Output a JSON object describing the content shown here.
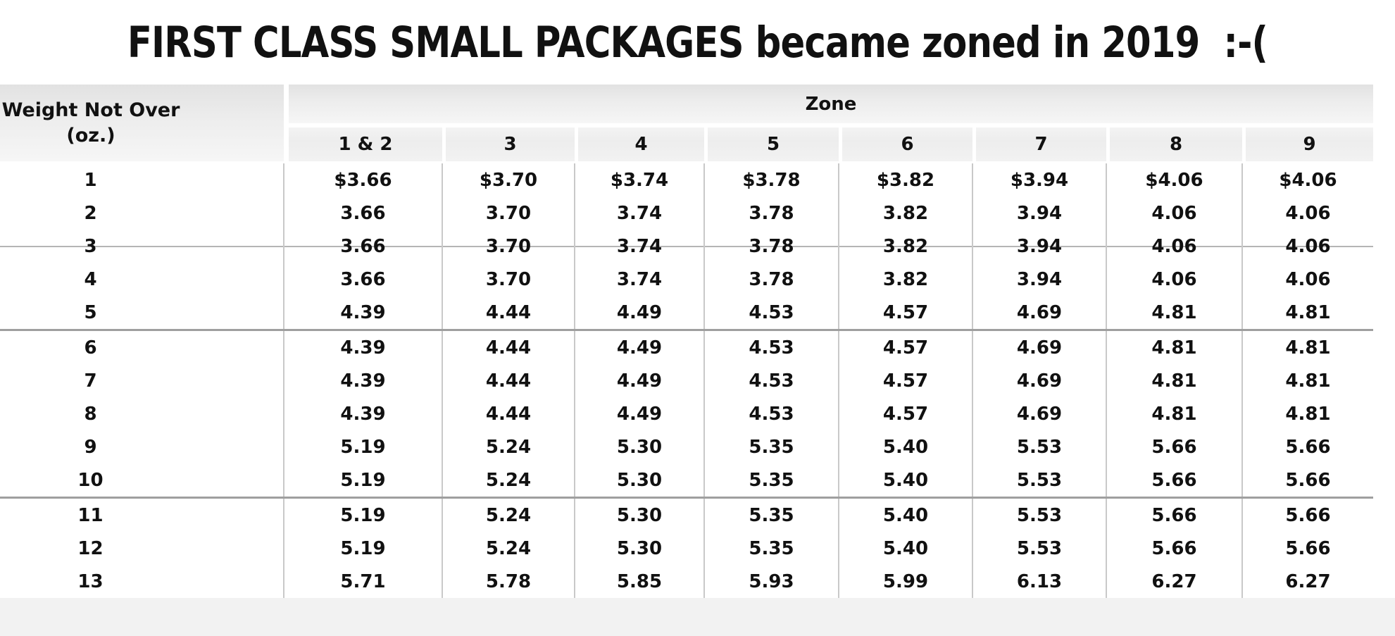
{
  "title": "FIRST CLASS SMALL PACKAGES became zoned in 2019  :-(",
  "table": {
    "weight_header_line1": "Weight Not Over",
    "weight_header_line2": "(oz.)",
    "zone_header": "Zone",
    "zone_columns": [
      "1 & 2",
      "3",
      "4",
      "5",
      "6",
      "7",
      "8",
      "9"
    ],
    "group_breaks_after": [
      5,
      10,
      13
    ],
    "rows": [
      {
        "weight": "1",
        "values": [
          "$3.66",
          "$3.70",
          "$3.74",
          "$3.78",
          "$3.82",
          "$3.94",
          "$4.06",
          "$4.06"
        ]
      },
      {
        "weight": "2",
        "values": [
          "3.66",
          "3.70",
          "3.74",
          "3.78",
          "3.82",
          "3.94",
          "4.06",
          "4.06"
        ]
      },
      {
        "weight": "3",
        "values": [
          "3.66",
          "3.70",
          "3.74",
          "3.78",
          "3.82",
          "3.94",
          "4.06",
          "4.06"
        ]
      },
      {
        "weight": "4",
        "values": [
          "3.66",
          "3.70",
          "3.74",
          "3.78",
          "3.82",
          "3.94",
          "4.06",
          "4.06"
        ]
      },
      {
        "weight": "5",
        "values": [
          "4.39",
          "4.44",
          "4.49",
          "4.53",
          "4.57",
          "4.69",
          "4.81",
          "4.81"
        ]
      },
      {
        "weight": "6",
        "values": [
          "4.39",
          "4.44",
          "4.49",
          "4.53",
          "4.57",
          "4.69",
          "4.81",
          "4.81"
        ]
      },
      {
        "weight": "7",
        "values": [
          "4.39",
          "4.44",
          "4.49",
          "4.53",
          "4.57",
          "4.69",
          "4.81",
          "4.81"
        ]
      },
      {
        "weight": "8",
        "values": [
          "4.39",
          "4.44",
          "4.49",
          "4.53",
          "4.57",
          "4.69",
          "4.81",
          "4.81"
        ]
      },
      {
        "weight": "9",
        "values": [
          "5.19",
          "5.24",
          "5.30",
          "5.35",
          "5.40",
          "5.53",
          "5.66",
          "5.66"
        ]
      },
      {
        "weight": "10",
        "values": [
          "5.19",
          "5.24",
          "5.30",
          "5.35",
          "5.40",
          "5.53",
          "5.66",
          "5.66"
        ]
      },
      {
        "weight": "11",
        "values": [
          "5.19",
          "5.24",
          "5.30",
          "5.35",
          "5.40",
          "5.53",
          "5.66",
          "5.66"
        ]
      },
      {
        "weight": "12",
        "values": [
          "5.19",
          "5.24",
          "5.30",
          "5.35",
          "5.40",
          "5.53",
          "5.66",
          "5.66"
        ]
      },
      {
        "weight": "13",
        "values": [
          "5.71",
          "5.78",
          "5.85",
          "5.93",
          "5.99",
          "6.13",
          "6.27",
          "6.27"
        ]
      }
    ]
  },
  "colors": {
    "header_gray_top": "#e2e2e2",
    "header_gray_mid": "#ededed",
    "header_gray_bottom": "#f6f6f6",
    "grid_line": "#c9c9c9",
    "group_line": "#9f9f9f",
    "footer_strip": "#f2f2f2",
    "text": "#111111"
  }
}
